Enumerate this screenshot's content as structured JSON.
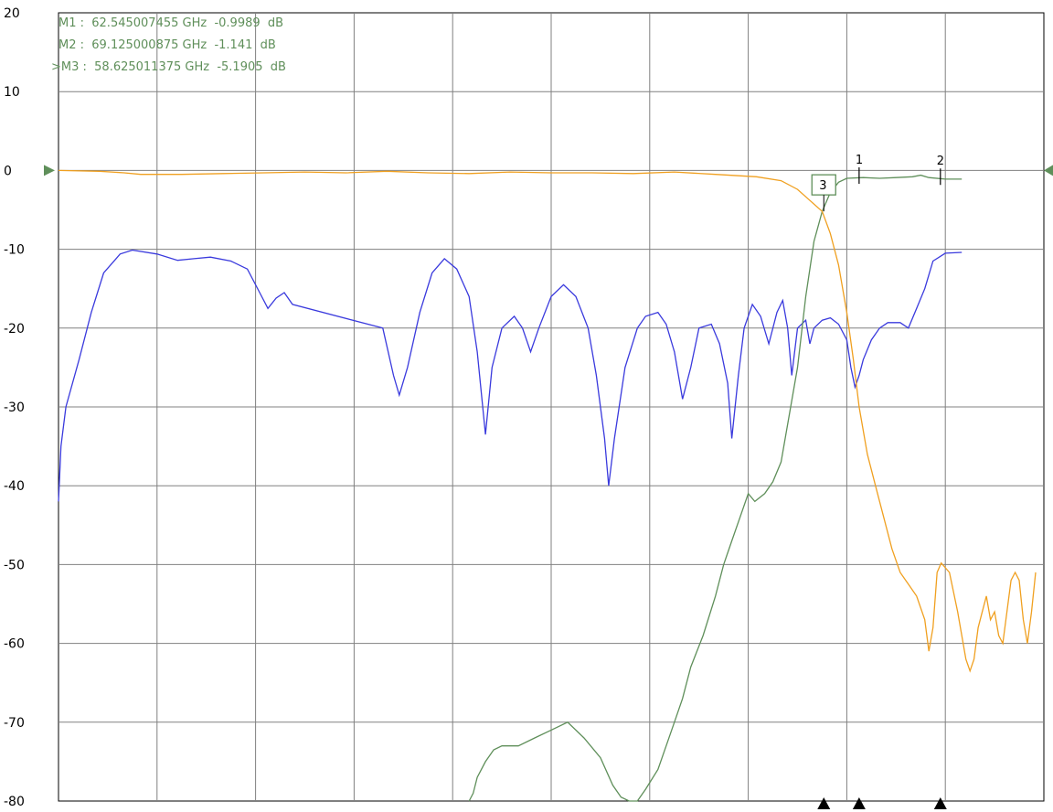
{
  "chart_data": {
    "type": "line",
    "ylim": [
      -80,
      20
    ],
    "yticks": [
      20,
      10,
      0,
      -10,
      -20,
      -30,
      -40,
      -50,
      -60,
      -70,
      -80
    ],
    "ytick_labels": [
      "20",
      "10",
      "0",
      "-10",
      "-20",
      "-30",
      "-40",
      "-50",
      "-60",
      "-70",
      "-80"
    ],
    "grid": true,
    "x_divisions": 10,
    "reference_level": 0,
    "colors": {
      "s11": "#3a3add",
      "s21": "#5f8f5a",
      "s22": "#f0a020",
      "grid": "#808080",
      "markers": "#5f8f5a"
    },
    "series": [
      {
        "key": "s11",
        "values": [
          [
            0,
            -42
          ],
          [
            0.3,
            -35
          ],
          [
            0.9,
            -30
          ],
          [
            2.5,
            -24
          ],
          [
            4,
            -18
          ],
          [
            5.5,
            -13
          ],
          [
            7.5,
            -10.6
          ],
          [
            9,
            -10.1
          ],
          [
            12,
            -10.6
          ],
          [
            14.5,
            -11.4
          ],
          [
            16.5,
            -11.2
          ],
          [
            18.5,
            -11
          ],
          [
            21,
            -11.5
          ],
          [
            23,
            -12.5
          ],
          [
            24.5,
            -15.5
          ],
          [
            25.5,
            -17.5
          ],
          [
            26.5,
            -16.2
          ],
          [
            27.5,
            -15.5
          ],
          [
            28.5,
            -17
          ],
          [
            39.5,
            -20
          ],
          [
            40.8,
            -26
          ],
          [
            41.5,
            -28.5
          ],
          [
            42.5,
            -25
          ],
          [
            44,
            -18
          ],
          [
            45.5,
            -13
          ],
          [
            47,
            -11.2
          ],
          [
            48.5,
            -12.5
          ],
          [
            50,
            -16
          ],
          [
            51,
            -23
          ],
          [
            52,
            -33.5
          ],
          [
            52.8,
            -25
          ],
          [
            54,
            -20
          ],
          [
            55.5,
            -18.5
          ],
          [
            56.5,
            -20
          ],
          [
            57.5,
            -23
          ],
          [
            58.5,
            -20
          ],
          [
            60,
            -16
          ],
          [
            61.5,
            -14.5
          ],
          [
            63,
            -16
          ],
          [
            64.5,
            -20
          ],
          [
            65.5,
            -26
          ],
          [
            66.5,
            -34
          ],
          [
            67,
            -40
          ],
          [
            67.7,
            -34
          ],
          [
            69,
            -25
          ],
          [
            70.5,
            -20
          ],
          [
            71.5,
            -18.5
          ],
          [
            73,
            -18
          ],
          [
            74,
            -19.5
          ],
          [
            75,
            -23
          ],
          [
            76,
            -29
          ],
          [
            77,
            -25
          ],
          [
            78,
            -20
          ],
          [
            79.5,
            -19.5
          ],
          [
            80.5,
            -22
          ],
          [
            81.5,
            -27
          ],
          [
            82,
            -34
          ],
          [
            82.8,
            -26
          ],
          [
            83.5,
            -20
          ],
          [
            84.5,
            -17
          ],
          [
            85.5,
            -18.5
          ],
          [
            86.5,
            -22
          ],
          [
            87.5,
            -18
          ],
          [
            88.2,
            -16.5
          ],
          [
            88.8,
            -20
          ],
          [
            89.3,
            -26
          ],
          [
            90,
            -20
          ],
          [
            91,
            -19
          ],
          [
            91.5,
            -22
          ],
          [
            92,
            -20
          ],
          [
            93,
            -19
          ],
          [
            94,
            -18.7
          ],
          [
            95,
            -19.5
          ],
          [
            96,
            -21.5
          ],
          [
            96.5,
            -25
          ],
          [
            97,
            -27.5
          ],
          [
            97.5,
            -26
          ],
          [
            98,
            -24
          ],
          [
            99,
            -21.5
          ],
          [
            100,
            -20
          ],
          [
            101,
            -19.3
          ],
          [
            102.5,
            -19.3
          ],
          [
            103.5,
            -20
          ],
          [
            104.5,
            -17.5
          ],
          [
            105.5,
            -15
          ],
          [
            106.5,
            -11.5
          ],
          [
            108,
            -10.5
          ],
          [
            110,
            -10.4
          ]
        ]
      },
      {
        "key": "s21",
        "values": [
          [
            50,
            -80
          ],
          [
            50.5,
            -79
          ],
          [
            51,
            -77
          ],
          [
            52,
            -75
          ],
          [
            53,
            -73.5
          ],
          [
            54,
            -73
          ],
          [
            56,
            -73
          ],
          [
            58,
            -72
          ],
          [
            60,
            -71
          ],
          [
            62,
            -70
          ],
          [
            64,
            -72
          ],
          [
            66,
            -74.5
          ],
          [
            67.5,
            -78
          ],
          [
            68.5,
            -79.5
          ],
          [
            69.5,
            -80
          ],
          [
            70.5,
            -80
          ],
          [
            71.5,
            -78.5
          ],
          [
            73,
            -76
          ],
          [
            74,
            -73
          ],
          [
            75,
            -70
          ],
          [
            76,
            -67
          ],
          [
            77,
            -63
          ],
          [
            78.5,
            -59
          ],
          [
            80,
            -54
          ],
          [
            81,
            -50
          ],
          [
            82,
            -47
          ],
          [
            83,
            -44
          ],
          [
            84,
            -41
          ],
          [
            84.8,
            -42
          ],
          [
            86,
            -41
          ],
          [
            87,
            -39.5
          ],
          [
            88,
            -37
          ],
          [
            89,
            -31
          ],
          [
            90,
            -25
          ],
          [
            91,
            -16
          ],
          [
            92,
            -9
          ],
          [
            93,
            -5.2
          ],
          [
            94,
            -2.8
          ],
          [
            95,
            -1.5
          ],
          [
            96,
            -1
          ],
          [
            98,
            -0.9
          ],
          [
            100,
            -1
          ],
          [
            102,
            -0.9
          ],
          [
            104,
            -0.8
          ],
          [
            105,
            -0.6
          ],
          [
            106,
            -0.9
          ],
          [
            108,
            -1.1
          ],
          [
            110,
            -1.1
          ]
        ]
      },
      {
        "key": "s22",
        "values": [
          [
            0,
            0
          ],
          [
            5,
            -0.1
          ],
          [
            8,
            -0.3
          ],
          [
            10,
            -0.5
          ],
          [
            15,
            -0.5
          ],
          [
            20,
            -0.4
          ],
          [
            25,
            -0.3
          ],
          [
            30,
            -0.2
          ],
          [
            35,
            -0.3
          ],
          [
            40,
            -0.1
          ],
          [
            45,
            -0.3
          ],
          [
            50,
            -0.4
          ],
          [
            55,
            -0.2
          ],
          [
            60,
            -0.3
          ],
          [
            65,
            -0.3
          ],
          [
            70,
            -0.4
          ],
          [
            75,
            -0.2
          ],
          [
            80,
            -0.5
          ],
          [
            85,
            -0.8
          ],
          [
            88,
            -1.3
          ],
          [
            90,
            -2.4
          ],
          [
            91.5,
            -3.8
          ],
          [
            93,
            -5.2
          ],
          [
            94,
            -8
          ],
          [
            95,
            -12
          ],
          [
            96,
            -18
          ],
          [
            96.8,
            -24
          ],
          [
            97.5,
            -30
          ],
          [
            98.5,
            -36
          ],
          [
            99.5,
            -40
          ],
          [
            100.5,
            -44
          ],
          [
            101.5,
            -48
          ],
          [
            102.5,
            -51
          ],
          [
            103.5,
            -52.5
          ],
          [
            104.5,
            -54
          ],
          [
            105.5,
            -57
          ],
          [
            106,
            -61
          ],
          [
            106.5,
            -58
          ],
          [
            107,
            -51
          ],
          [
            107.5,
            -49.8
          ],
          [
            108.5,
            -51
          ],
          [
            109.5,
            -56
          ],
          [
            110,
            -59
          ],
          [
            110.5,
            -62
          ],
          [
            111,
            -63.5
          ],
          [
            111.5,
            -62
          ],
          [
            112,
            -58
          ],
          [
            112.5,
            -56
          ],
          [
            113,
            -54
          ],
          [
            113.5,
            -57
          ],
          [
            114,
            -56
          ],
          [
            114.5,
            -59
          ],
          [
            115,
            -60
          ],
          [
            115.5,
            -56
          ],
          [
            116,
            -52
          ],
          [
            116.5,
            -51
          ],
          [
            117,
            -52
          ],
          [
            117.5,
            -57
          ],
          [
            118,
            -60
          ],
          [
            118.5,
            -56
          ],
          [
            119,
            -51
          ]
        ]
      }
    ],
    "markers": [
      {
        "label": "1",
        "pos": 97.5,
        "value": -0.9989
      },
      {
        "label": "2",
        "pos": 107.4,
        "value": -1.141
      },
      {
        "label": "3",
        "pos": 93.2,
        "value": -5.1905
      }
    ],
    "annotations": [
      "M1 :  62.545007455 GHz  -0.9989  dB",
      "M2 :  69.125000875 GHz  -1.141  dB",
      ">M3 :  58.625011375 GHz  -5.1905  dB"
    ]
  }
}
